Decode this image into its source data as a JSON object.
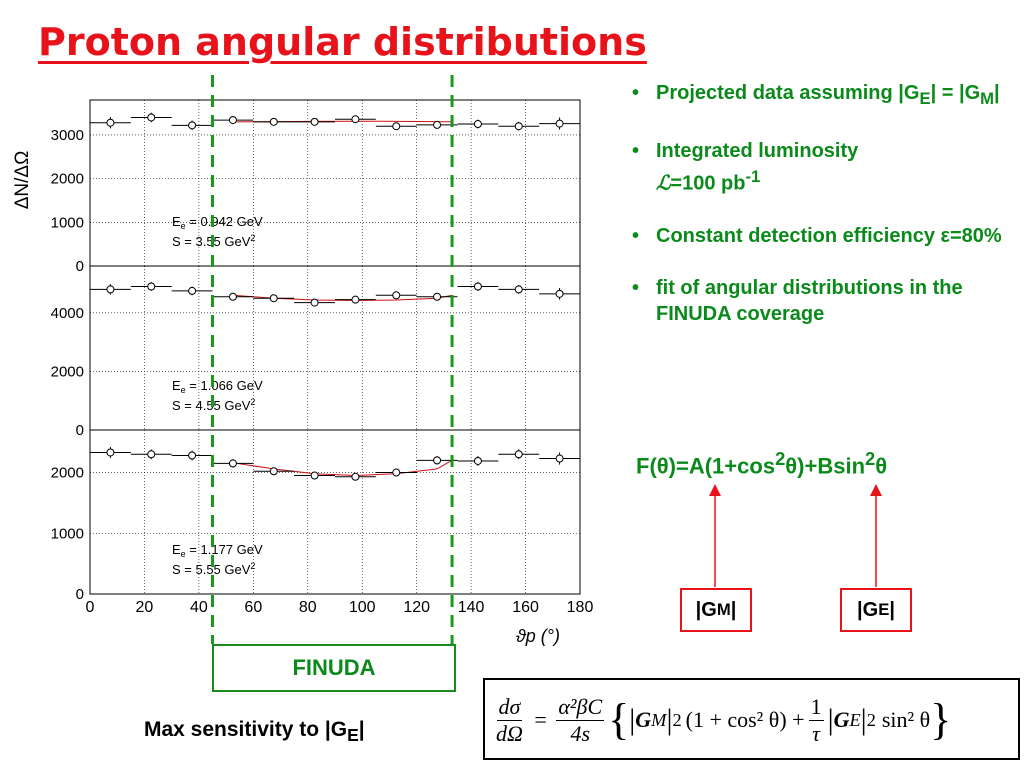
{
  "slide": {
    "title": "Proton angular distributions",
    "bullets": [
      {
        "text": "Projected data assuming |G",
        "sub1": "E",
        "mid": "| = |G",
        "sub2": "M",
        "end": "|"
      },
      {
        "text": "Integrated luminosity ",
        "script": "ℒ",
        "value": "=100 pb",
        "sup": "-1"
      },
      {
        "text": "Constant detection efficiency ",
        "symbol": "ε",
        "value": "=80%"
      },
      {
        "text": "fit of angular distributions in the FINUDA coverage"
      }
    ],
    "formula": {
      "lead": "F(",
      "theta": "θ",
      "a": ")=A(1+cos",
      "sup1": "2",
      "b": ")+Bsin",
      "sup2": "2"
    },
    "gm_box": {
      "text": "|G",
      "sub": "M",
      "end": "|"
    },
    "ge_box": {
      "text": "|G",
      "sub": "E",
      "end": "|"
    },
    "finuda_label": "FINUDA",
    "max_sensitivity": {
      "text": "Max sensitivity to |G",
      "sub": "E",
      "end": "|"
    },
    "equation": {
      "lhs_num": "dσ",
      "lhs_den": "dΩ",
      "rhs_num": "α²βC",
      "rhs_den": "4s",
      "gm": "G",
      "gm_sub": "M",
      "term1": "(1 + cos² θ) +",
      "tau_num": "1",
      "tau_den": "τ",
      "ge": "G",
      "ge_sub": "E",
      "term2": "sin² θ"
    }
  },
  "colors": {
    "title": "#e8131a",
    "text_green": "#0a8a1a",
    "dash_green": "#1a9a1a",
    "fit_red": "#d01010",
    "arrow_red": "#e8131a"
  },
  "chart_data": {
    "type": "scatter",
    "ylabel": "ΔN/ΔΩ",
    "xlabel": "ϑp (°)",
    "xlim": [
      0,
      180
    ],
    "x_ticks": [
      "0",
      "20",
      "40",
      "60",
      "80",
      "100",
      "120",
      "140",
      "160",
      "180"
    ],
    "grid": true,
    "finuda_range_deg": [
      45,
      133
    ],
    "x": [
      7.5,
      22.5,
      37.5,
      52.5,
      67.5,
      82.5,
      97.5,
      112.5,
      127.5,
      142.5,
      157.5,
      172.5
    ],
    "x_err": 7.5,
    "panels": [
      {
        "label_e": "E",
        "label_e_sub": "e",
        "label_e_val": " = 0.942 GeV",
        "label_s": "S = 3.55 GeV",
        "label_s_sup": "2",
        "ylim": [
          0,
          3800
        ],
        "y_ticks": [
          "0",
          "1000",
          "2000",
          "3000"
        ],
        "y_tick_values": [
          0,
          1000,
          2000,
          3000
        ],
        "values": [
          3280,
          3400,
          3220,
          3340,
          3300,
          3300,
          3360,
          3200,
          3230,
          3250,
          3200,
          3260
        ],
        "y_err": [
          130,
          110,
          110,
          90,
          80,
          80,
          80,
          80,
          80,
          100,
          100,
          140
        ],
        "fit": [
          3300,
          3306,
          3312,
          3314,
          3312,
          3306,
          3300
        ]
      },
      {
        "label_e": "E",
        "label_e_sub": "e",
        "label_e_val": " = 1.066 GeV",
        "label_s": "S = 4.55 GeV",
        "label_s_sup": "2",
        "ylim": [
          0,
          5600
        ],
        "y_ticks": [
          "0",
          "2000",
          "4000"
        ],
        "y_tick_values": [
          0,
          2000,
          4000
        ],
        "values": [
          4800,
          4900,
          4750,
          4550,
          4500,
          4350,
          4450,
          4600,
          4550,
          4900,
          4800,
          4650
        ],
        "y_err": [
          180,
          150,
          150,
          130,
          110,
          110,
          110,
          110,
          130,
          150,
          150,
          200
        ],
        "fit": [
          4600,
          4500,
          4440,
          4420,
          4440,
          4500,
          4600
        ]
      },
      {
        "label_e": "E",
        "label_e_sub": "e",
        "label_e_val": " = 1.177 GeV",
        "label_s": "S = 5.55 GeV",
        "label_s_sup": "2",
        "ylim": [
          0,
          2700
        ],
        "y_ticks": [
          "0",
          "1000",
          "2000"
        ],
        "y_tick_values": [
          0,
          1000,
          2000
        ],
        "values": [
          2330,
          2300,
          2280,
          2150,
          2020,
          1950,
          1930,
          2000,
          2200,
          2190,
          2300,
          2230
        ],
        "y_err": [
          90,
          80,
          80,
          70,
          60,
          60,
          60,
          60,
          70,
          80,
          80,
          100
        ],
        "fit": [
          2160,
          2060,
          1980,
          1950,
          1980,
          2060,
          2200
        ]
      }
    ]
  }
}
